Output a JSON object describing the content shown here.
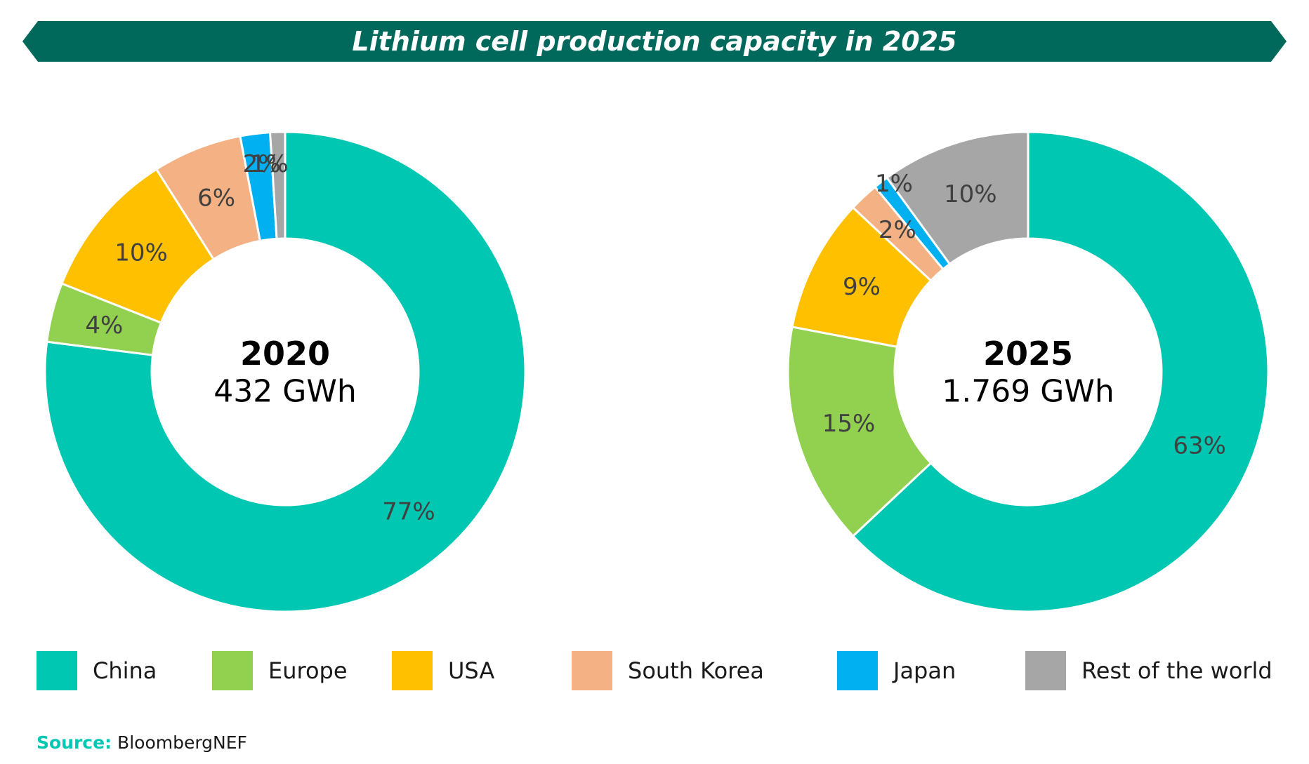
{
  "title": "Lithium cell production capacity in 2025",
  "colors": {
    "banner": "#00695c",
    "China": "#00c7b1",
    "Europe": "#92d050",
    "USA": "#ffc000",
    "South Korea": "#f4b183",
    "Japan": "#00b0f0",
    "Rest of the world": "#a6a6a6"
  },
  "chart_data": [
    {
      "type": "pie",
      "center_title": "2020",
      "center_subtitle": "432 GWh",
      "categories": [
        "China",
        "Europe",
        "USA",
        "South Korea",
        "Japan",
        "Rest of the world"
      ],
      "values": [
        77,
        4,
        10,
        6,
        2,
        1
      ],
      "labels": [
        "77%",
        "4%",
        "10%",
        "6%",
        "2%",
        "1%"
      ]
    },
    {
      "type": "pie",
      "center_title": "2025",
      "center_subtitle": "1.769 GWh",
      "categories": [
        "China",
        "Europe",
        "USA",
        "South Korea",
        "Japan",
        "Rest of the world"
      ],
      "values": [
        63,
        15,
        9,
        2,
        1,
        10
      ],
      "labels": [
        "63%",
        "15%",
        "9%",
        "2%",
        "1%",
        "10%"
      ]
    }
  ],
  "legend": [
    "China",
    "Europe",
    "USA",
    "South Korea",
    "Japan",
    "Rest of the world"
  ],
  "source": {
    "label": "Source:",
    "text": "BloombergNEF"
  }
}
